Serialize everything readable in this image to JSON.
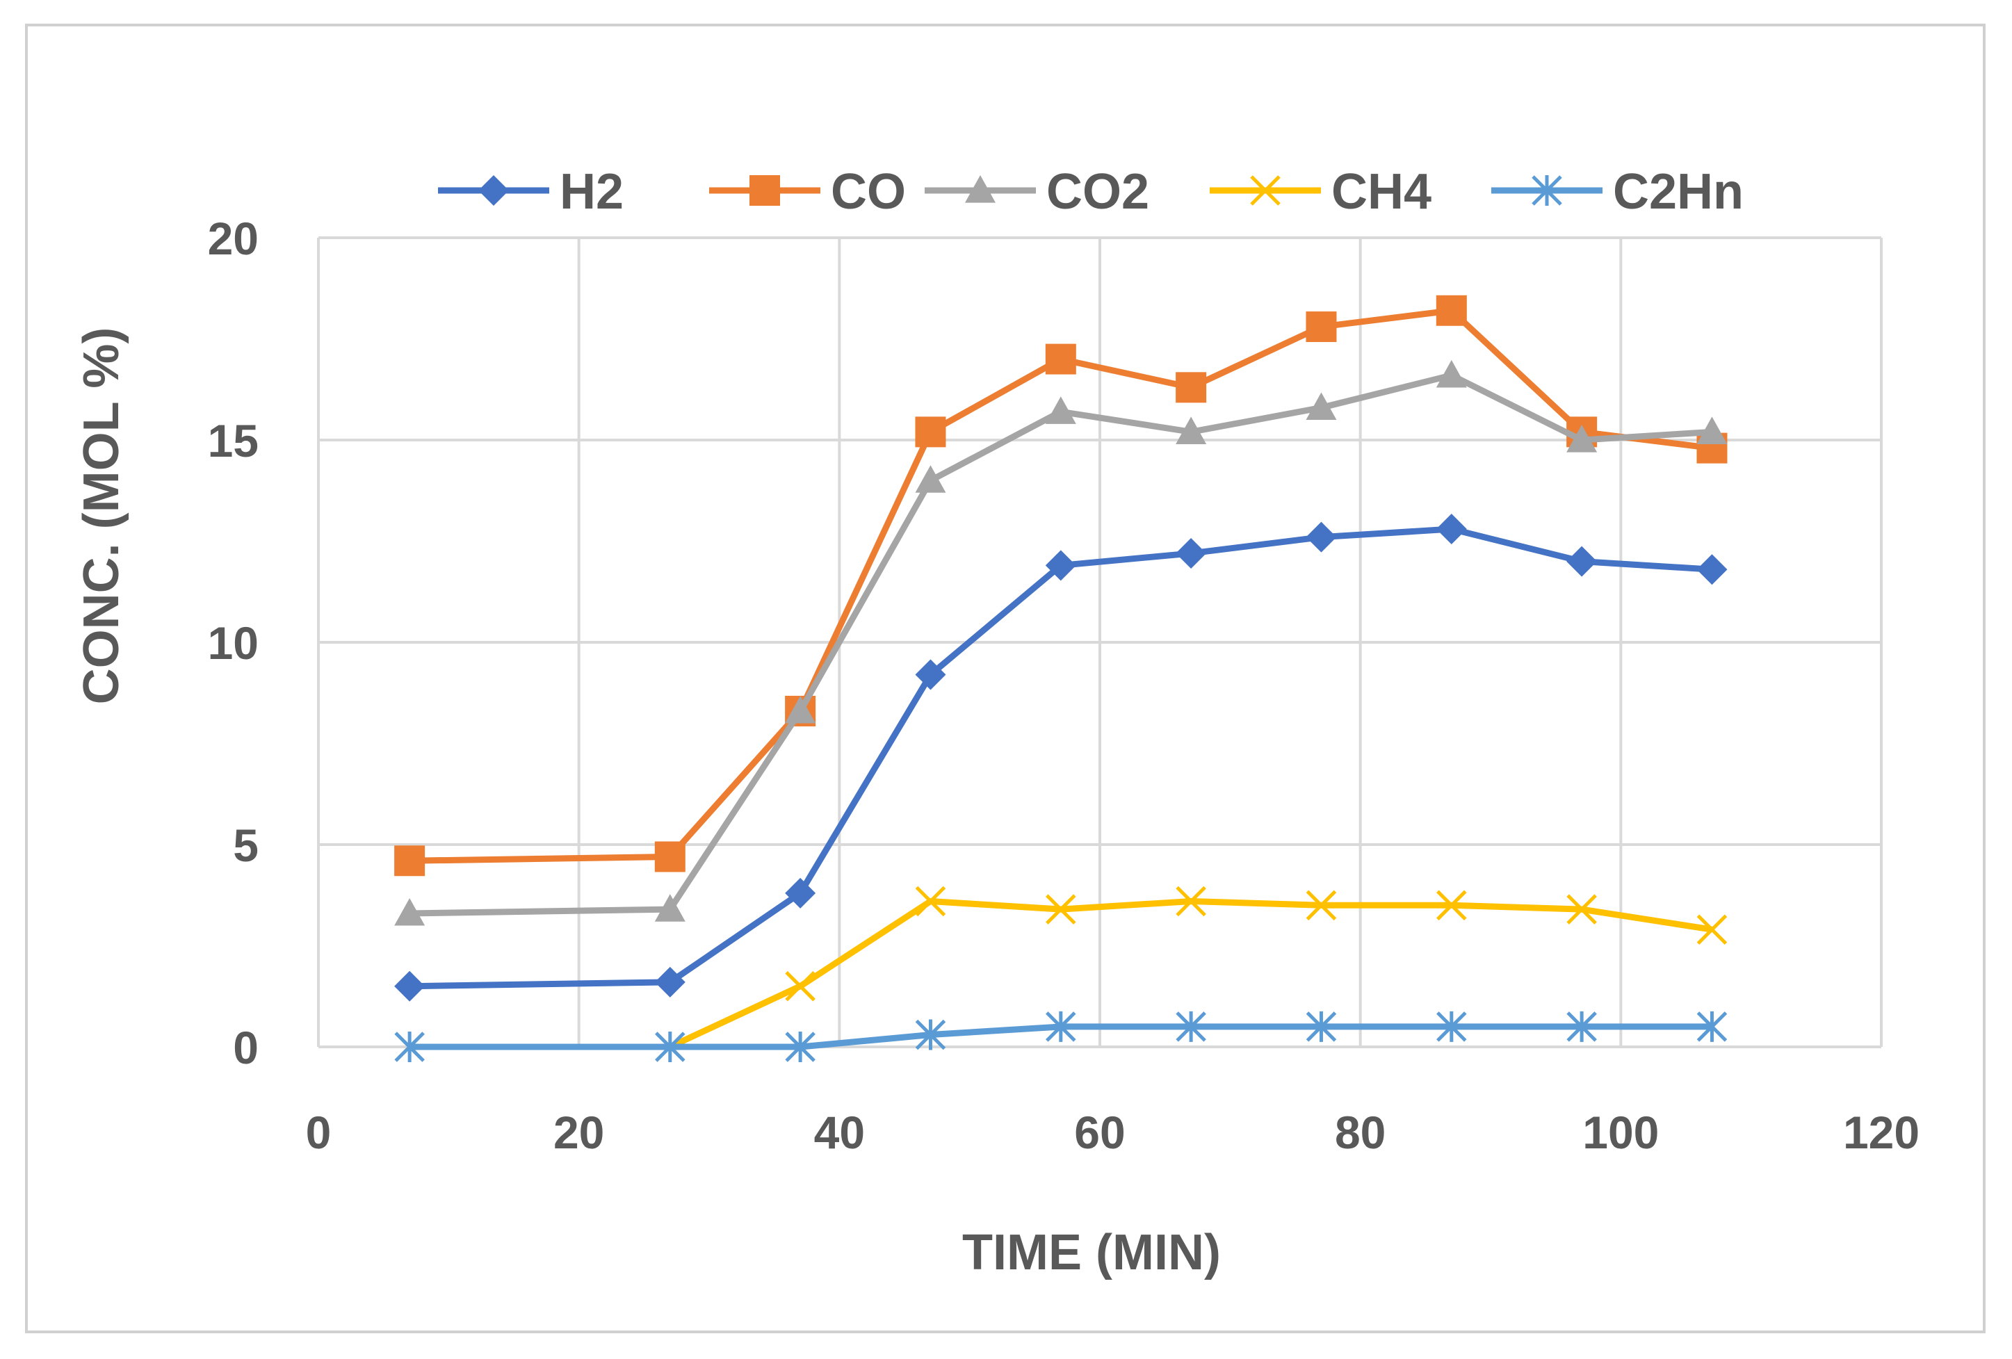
{
  "chart_data": {
    "type": "line",
    "title": "",
    "xlabel": "TIME (MIN)",
    "ylabel": "CONC. (MOL %)",
    "xlim": [
      0,
      120
    ],
    "ylim": [
      0,
      20
    ],
    "xticks": [
      0,
      20,
      40,
      60,
      80,
      100,
      120
    ],
    "yticks": [
      0,
      5,
      10,
      15,
      20
    ],
    "xtick_labels": [
      "0",
      "20",
      "40",
      "60",
      "80",
      "100",
      "120"
    ],
    "ytick_labels": [
      "0",
      "5",
      "10",
      "15",
      "20"
    ],
    "grid": true,
    "legend_position": "top",
    "x": [
      7,
      27,
      37,
      47,
      57,
      67,
      77,
      87,
      97,
      107
    ],
    "series": [
      {
        "name": "H2",
        "color": "#4472c4",
        "marker": "diamond",
        "x": [
          7,
          27,
          37,
          47,
          57,
          67,
          77,
          87,
          97,
          107
        ],
        "values": [
          1.5,
          1.6,
          3.8,
          9.2,
          11.9,
          12.2,
          12.6,
          12.8,
          12.0,
          11.8
        ]
      },
      {
        "name": "CO",
        "color": "#ed7d31",
        "marker": "square",
        "x": [
          7,
          27,
          37,
          47,
          57,
          67,
          77,
          87,
          97,
          107
        ],
        "values": [
          4.6,
          4.7,
          8.3,
          15.2,
          17.0,
          16.3,
          17.8,
          18.2,
          15.2,
          14.8
        ]
      },
      {
        "name": "CO2",
        "color": "#a5a5a5",
        "marker": "triangle",
        "x": [
          7,
          27,
          37,
          47,
          57,
          67,
          77,
          87,
          97,
          107
        ],
        "values": [
          3.3,
          3.4,
          8.3,
          14.0,
          15.7,
          15.2,
          15.8,
          16.6,
          15.0,
          15.2
        ]
      },
      {
        "name": "CH4",
        "color": "#ffc000",
        "marker": "x",
        "x": [
          27,
          37,
          47,
          57,
          67,
          77,
          87,
          97,
          107
        ],
        "values": [
          0,
          1.5,
          3.6,
          3.4,
          3.6,
          3.5,
          3.5,
          3.4,
          2.9
        ]
      },
      {
        "name": "C2Hn",
        "color": "#5b9bd5",
        "marker": "asterisk",
        "x": [
          7,
          27,
          37,
          47,
          57,
          67,
          77,
          87,
          97,
          107
        ],
        "values": [
          0,
          0,
          0,
          0.3,
          0.5,
          0.5,
          0.5,
          0.5,
          0.5,
          0.5
        ]
      }
    ]
  }
}
